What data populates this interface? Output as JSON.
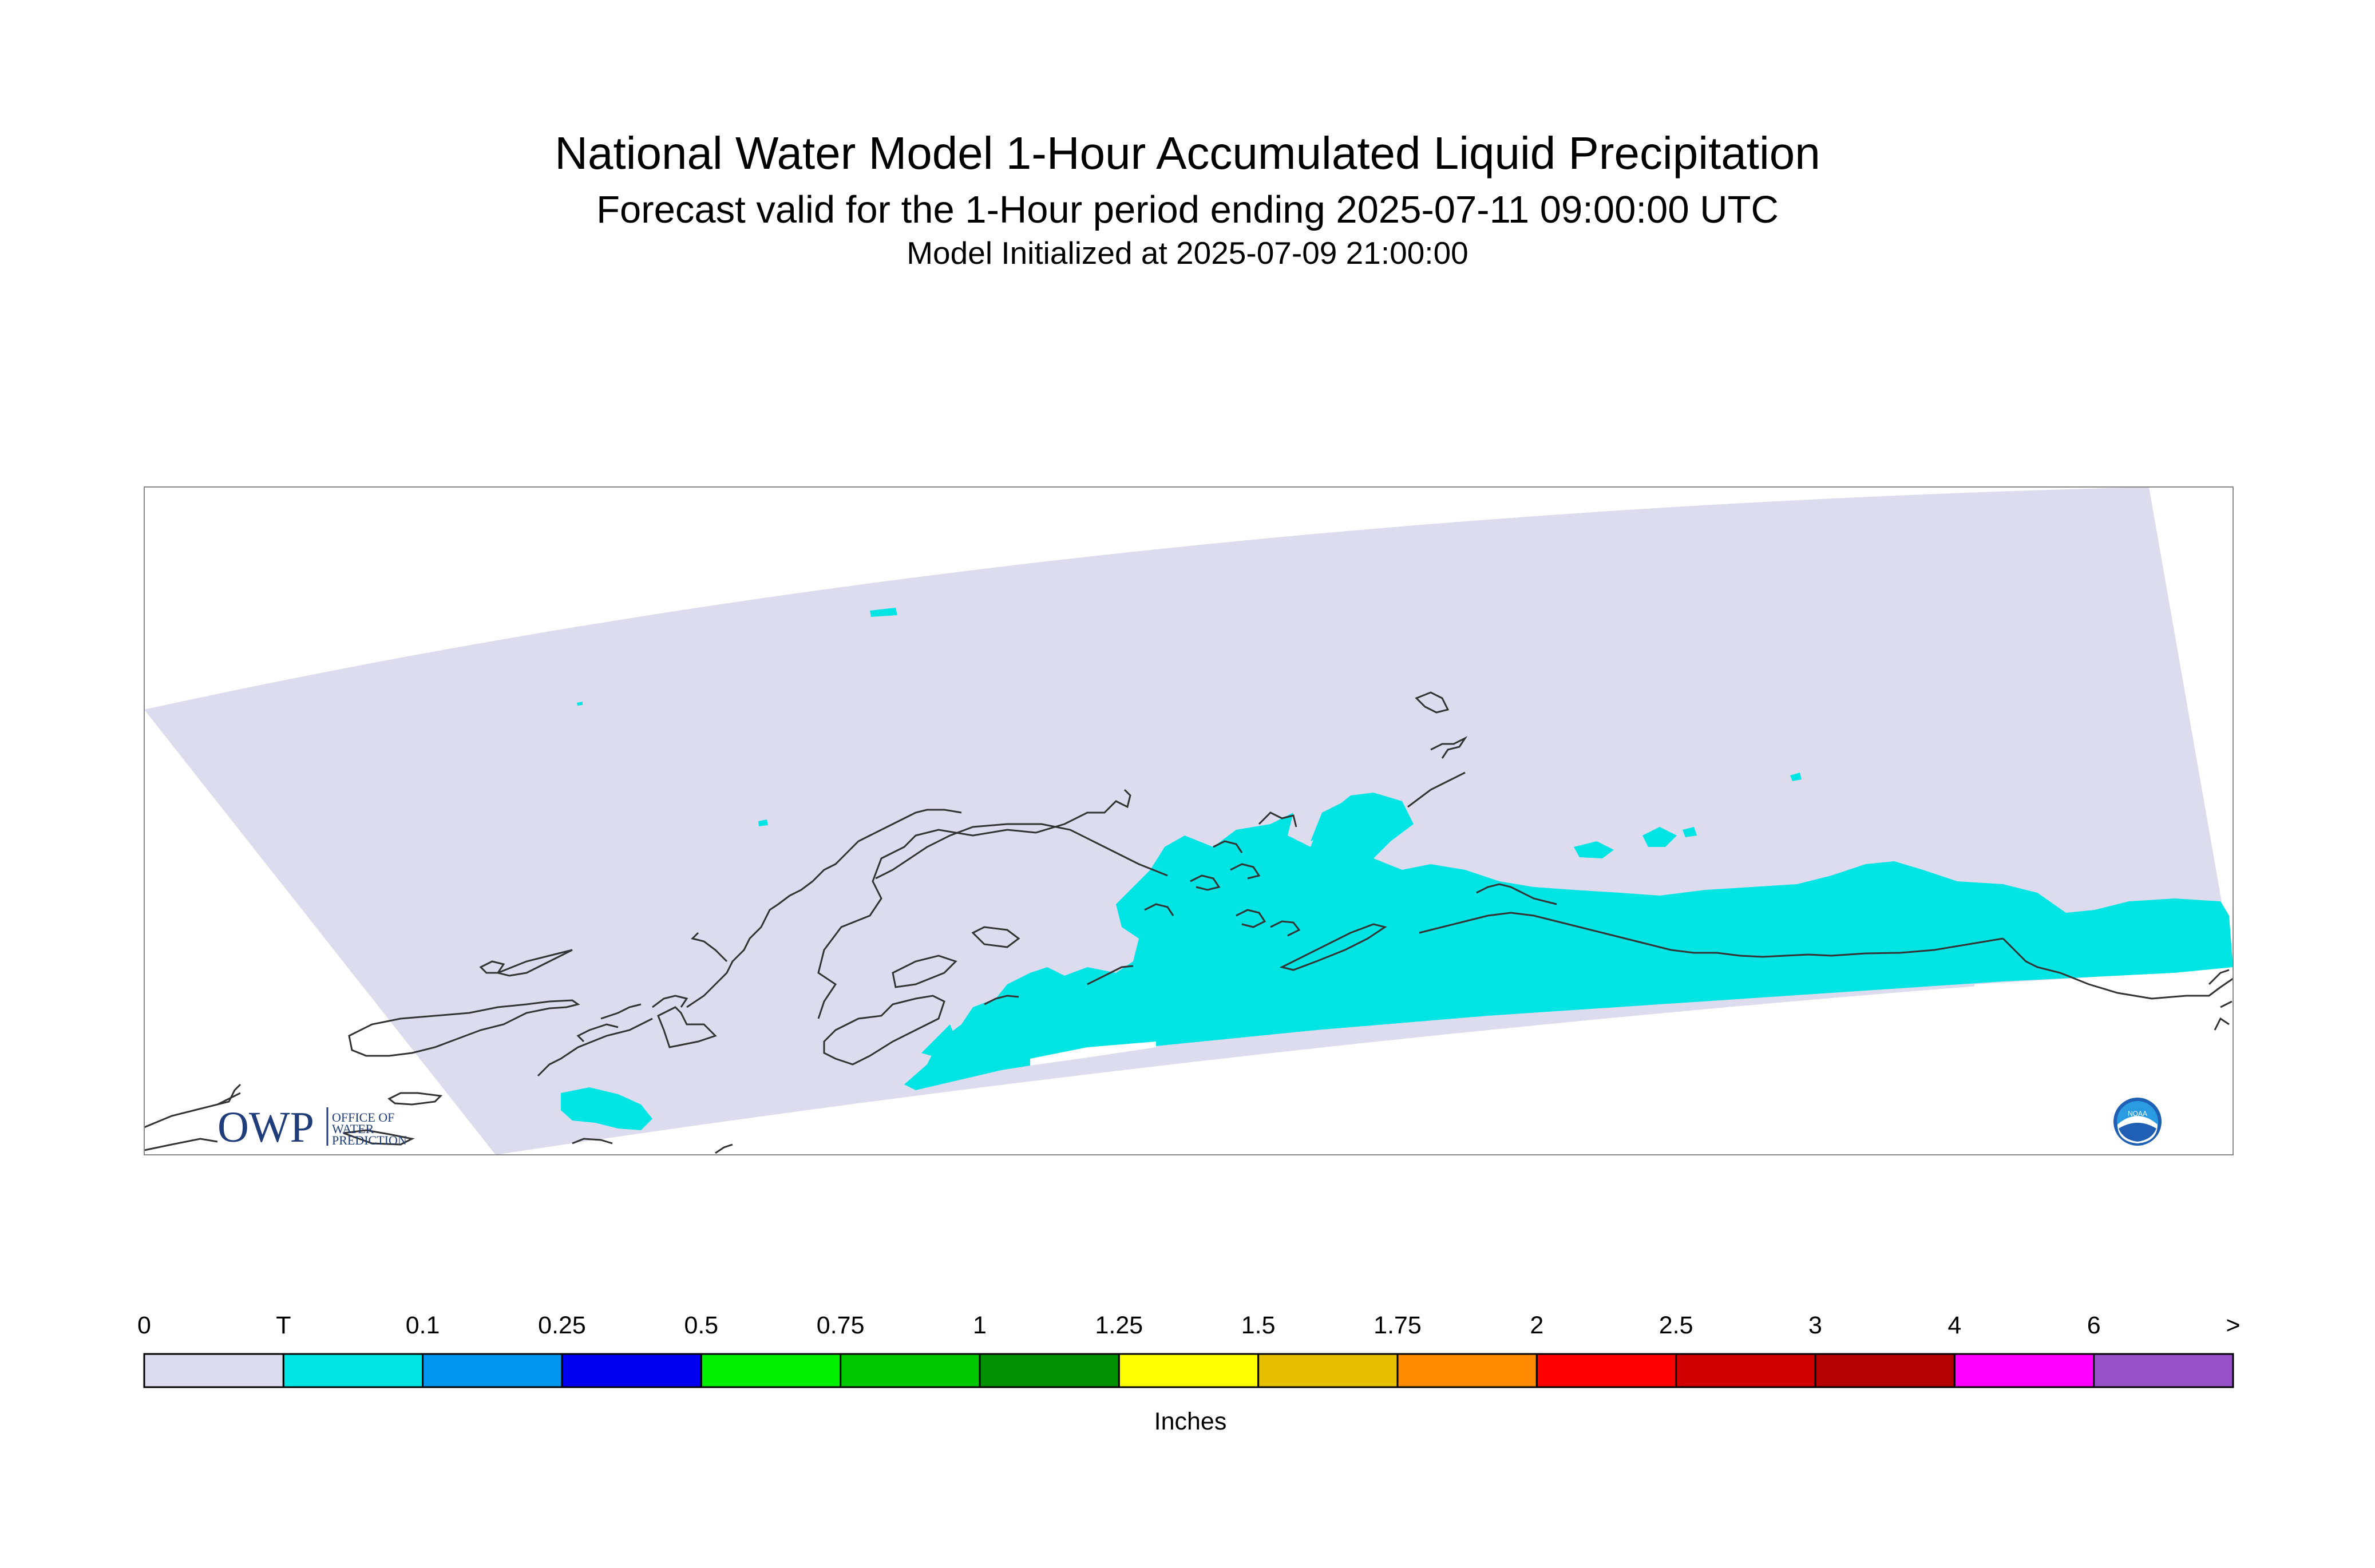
{
  "header": {
    "title": "National Water Model 1-Hour Accumulated Liquid Precipitation",
    "subtitle": "Forecast valid for the 1-Hour period ending 2025-07-11 09:00:00 UTC",
    "init_line": "Model Initialized at 2025-07-09 21:00:00"
  },
  "logos": {
    "owp_letters": "OWP",
    "owp_name_line1": "OFFICE OF",
    "owp_name_line2": "WATER",
    "owp_name_line3": "PREDICTION",
    "noaa_text": "NOAA"
  },
  "colors": {
    "no_precip": "#dcdcee",
    "trace": "#00e4e4",
    "coastline": "#333333",
    "frame": "#888888"
  },
  "legend": {
    "units": "Inches",
    "labels": [
      "0",
      "T",
      "0.1",
      "0.25",
      "0.5",
      "0.75",
      "1",
      "1.25",
      "1.5",
      "1.75",
      "2",
      "2.5",
      "3",
      "4",
      "6",
      ">"
    ],
    "colors": [
      "#dcdcee",
      "#00e4e4",
      "#0096f0",
      "#0000f0",
      "#00f000",
      "#00c800",
      "#009000",
      "#ffff00",
      "#e6c000",
      "#ff8c00",
      "#ff0000",
      "#d00000",
      "#b40000",
      "#ff00ff",
      "#9650c8"
    ]
  }
}
